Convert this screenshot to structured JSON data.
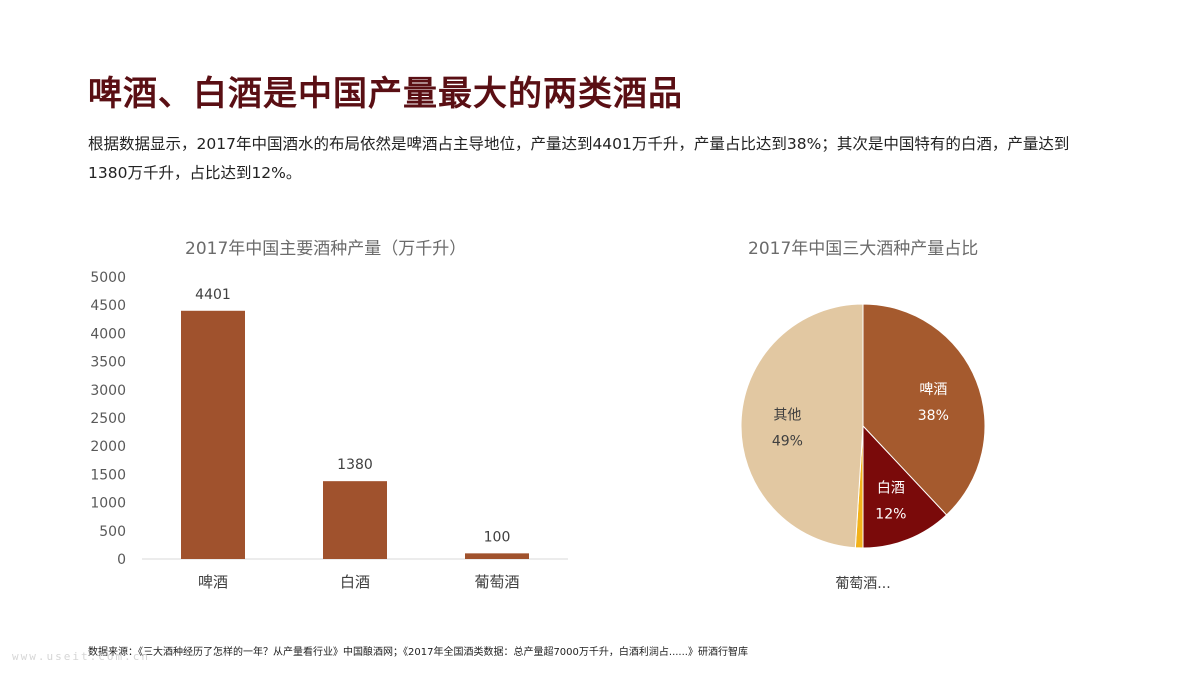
{
  "page": {
    "title": "啤酒、白酒是中国产量最大的两类酒品",
    "description": "根据数据显示，2017年中国酒水的布局依然是啤酒占主导地位，产量达到4401万千升，产量占比达到38%；其次是中国特有的白酒，产量达到1380万千升，占比达到12%。",
    "source": "数据来源：《三大酒种经历了怎样的一年？从产量看行业》中国酿酒网；《2017年全国酒类数据：总产量超7000万千升，白酒利润占......》研酒行智库",
    "watermark": "www.useit.com.cn"
  },
  "chart_data": [
    {
      "type": "bar",
      "title": "2017年中国主要酒种产量（万千升）",
      "categories": [
        "啤酒",
        "白酒",
        "葡萄酒"
      ],
      "values": [
        4401,
        1380,
        100
      ],
      "data_labels": [
        "4401",
        "1380",
        "100"
      ],
      "ylim": [
        0,
        5000
      ],
      "yticks": [
        0,
        500,
        1000,
        1500,
        2000,
        2500,
        3000,
        3500,
        4000,
        4500,
        5000
      ],
      "bar_color": "#a0522d",
      "grid": false
    },
    {
      "type": "pie",
      "title": "2017年中国三大酒种产量占比",
      "slices": [
        {
          "label": "啤酒",
          "value": 38,
          "pct_label": "38%",
          "color": "#a55a2e"
        },
        {
          "label": "白酒",
          "value": 12,
          "pct_label": "12%",
          "color": "#7a0a0a"
        },
        {
          "label": "葡萄酒...",
          "value": 1,
          "pct_label": "",
          "color": "#f2b21b"
        },
        {
          "label": "其他",
          "value": 49,
          "pct_label": "49%",
          "color": "#e2c8a2"
        }
      ]
    }
  ]
}
